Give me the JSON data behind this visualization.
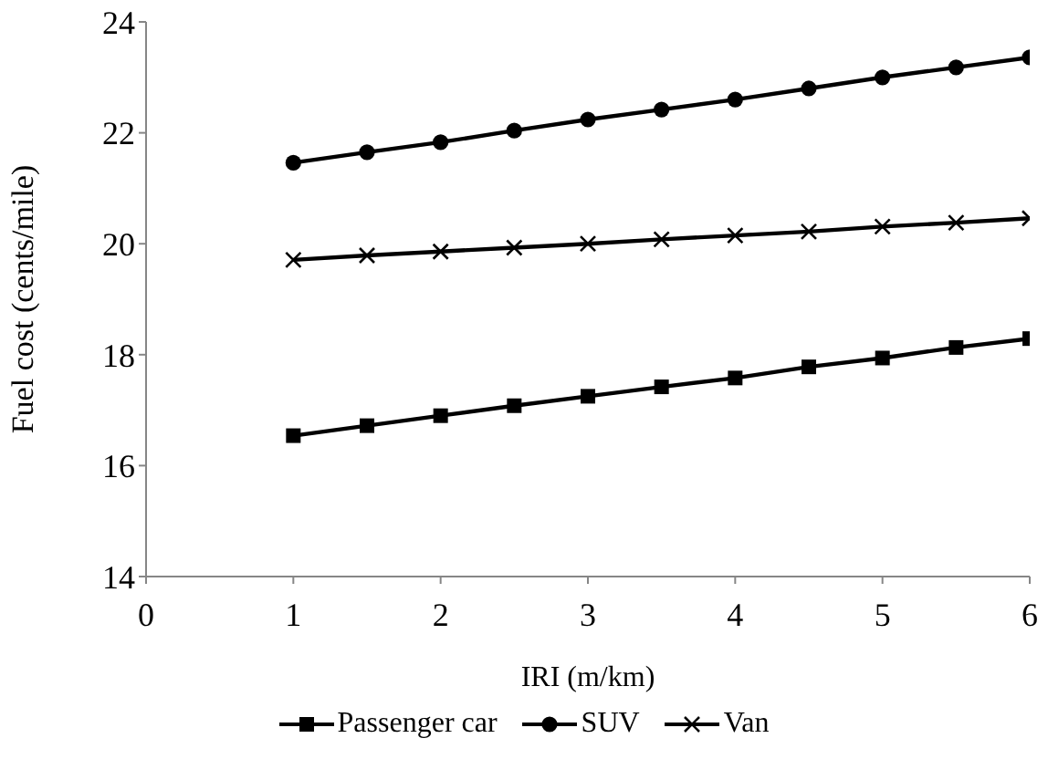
{
  "chart_data": {
    "type": "line",
    "xlabel": "IRI (m/km)",
    "ylabel": "Fuel cost (cents/mile)",
    "x": [
      1,
      1.5,
      2,
      2.5,
      3,
      3.5,
      4,
      4.5,
      5,
      5.5,
      6
    ],
    "series": [
      {
        "name": "Passenger car",
        "color": "#000000",
        "marker": "square",
        "values": [
          16.54,
          16.72,
          16.9,
          17.08,
          17.25,
          17.42,
          17.58,
          17.78,
          17.94,
          18.13,
          18.29
        ]
      },
      {
        "name": "SUV",
        "color": "#000000",
        "marker": "circle",
        "values": [
          21.46,
          21.65,
          21.83,
          22.04,
          22.24,
          22.42,
          22.6,
          22.8,
          23.0,
          23.18,
          23.36
        ]
      },
      {
        "name": "Van",
        "color": "#000000",
        "marker": "cross",
        "values": [
          19.71,
          19.79,
          19.86,
          19.93,
          20.0,
          20.08,
          20.15,
          20.22,
          20.31,
          20.38,
          20.46
        ]
      }
    ],
    "xlim": [
      0,
      6
    ],
    "xticks": [
      0,
      1,
      2,
      3,
      4,
      5,
      6
    ],
    "ylim": [
      14,
      24
    ],
    "yticks": [
      14,
      16,
      18,
      20,
      22,
      24
    ],
    "grid": false,
    "legend": "bottom",
    "line_style": "solid"
  }
}
